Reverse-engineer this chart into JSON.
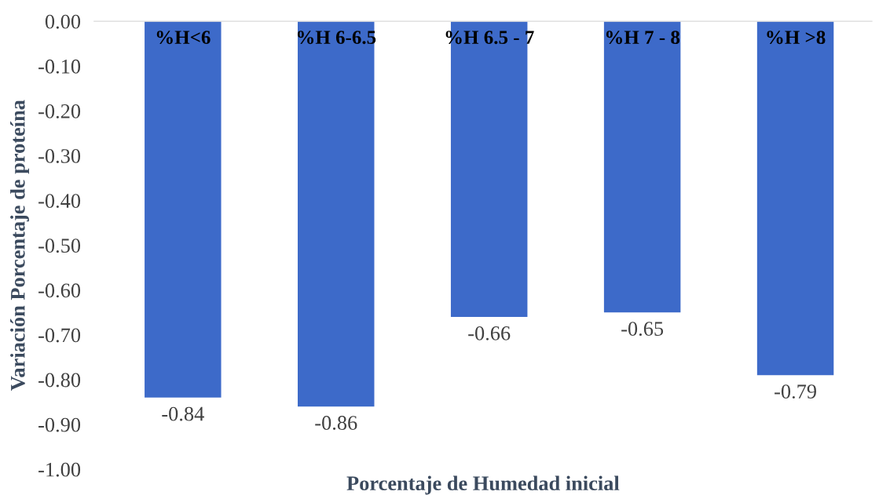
{
  "chart_data": {
    "type": "bar",
    "xlabel": "Porcentaje de Humedad inicial",
    "ylabel": "Variación Porcentaje de proteína",
    "categories": [
      "%H<6",
      "%H 6-6.5",
      "%H 6.5 - 7",
      "%H 7 - 8",
      "%H >8"
    ],
    "values": [
      -0.84,
      -0.86,
      -0.66,
      -0.65,
      -0.79
    ],
    "color": "#3d6ac9",
    "ylim": [
      -1.0,
      0
    ],
    "yticks": [
      {
        "value": 0,
        "label": "0.00"
      },
      {
        "value": -0.1,
        "label": "-0.10"
      },
      {
        "value": -0.2,
        "label": "-0.20"
      },
      {
        "value": -0.3,
        "label": "-0.30"
      },
      {
        "value": -0.4,
        "label": "-0.40"
      },
      {
        "value": -0.5,
        "label": "-0.50"
      },
      {
        "value": -0.6,
        "label": "-0.60"
      },
      {
        "value": -0.7,
        "label": "-0.70"
      },
      {
        "value": -0.8,
        "label": "-0.80"
      },
      {
        "value": -0.9,
        "label": "-0.90"
      },
      {
        "value": -1.0,
        "label": "-1.00"
      }
    ],
    "data_labels": true,
    "grid": false,
    "legend": false
  }
}
